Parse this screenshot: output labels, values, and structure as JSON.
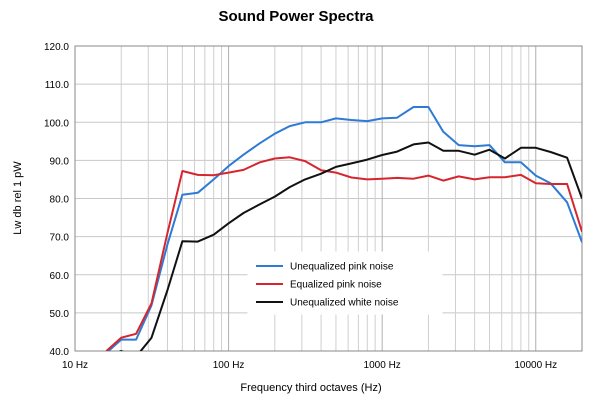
{
  "chart_data": {
    "type": "line",
    "title": "Sound Power Spectra",
    "xlabel": "Frequency  third octaves (Hz)",
    "ylabel": "Lw db rel 1 pW",
    "x_scale": "log",
    "xlim": [
      10,
      20000
    ],
    "ylim": [
      40,
      120
    ],
    "x_ticks": [
      {
        "value": 10,
        "label": "10 Hz"
      },
      {
        "value": 100,
        "label": "100 Hz"
      },
      {
        "value": 1000,
        "label": "1000 Hz"
      },
      {
        "value": 10000,
        "label": "10000 Hz"
      }
    ],
    "y_ticks": [
      {
        "value": 40,
        "label": "40.0"
      },
      {
        "value": 50,
        "label": "50.0"
      },
      {
        "value": 60,
        "label": "60.0"
      },
      {
        "value": 70,
        "label": "70.0"
      },
      {
        "value": 80,
        "label": "80.0"
      },
      {
        "value": 90,
        "label": "90.0"
      },
      {
        "value": 100,
        "label": "100.0"
      },
      {
        "value": 110,
        "label": "110.0"
      },
      {
        "value": 120,
        "label": "120.0"
      }
    ],
    "grid": true,
    "legend_position": "lower-center",
    "series": [
      {
        "name": "Unequalized pink noise",
        "color": "#2e7bd6",
        "x": [
          16,
          20,
          25,
          31.5,
          40,
          50,
          63,
          80,
          100,
          125,
          160,
          200,
          250,
          315,
          400,
          500,
          630,
          800,
          1000,
          1250,
          1600,
          2000,
          2500,
          3150,
          4000,
          5000,
          6300,
          8000,
          10000,
          12500,
          16000,
          20000
        ],
        "y": [
          39.5,
          43,
          43,
          52,
          68,
          81,
          81.5,
          85,
          88.5,
          91.5,
          94.5,
          97,
          99,
          100,
          100,
          101,
          100.6,
          100.3,
          101,
          101.2,
          104,
          104,
          97.5,
          94,
          93.7,
          94,
          89.5,
          89.5,
          86,
          84,
          79,
          68.5
        ]
      },
      {
        "name": "Equalized pink noise",
        "color": "#d6262d",
        "x": [
          16,
          20,
          25,
          31.5,
          40,
          50,
          63,
          80,
          100,
          125,
          160,
          200,
          250,
          315,
          400,
          500,
          630,
          800,
          1000,
          1250,
          1600,
          2000,
          2500,
          3150,
          4000,
          5000,
          6300,
          8000,
          10000,
          12500,
          16000,
          20000
        ],
        "y": [
          40,
          43.5,
          44.5,
          52.5,
          71,
          87.2,
          86.2,
          86.1,
          86.8,
          87.5,
          89.5,
          90.5,
          90.8,
          89.8,
          87.4,
          86.8,
          85.5,
          85,
          85.2,
          85.4,
          85.2,
          86,
          84.7,
          85.8,
          85,
          85.6,
          85.6,
          86.2,
          84,
          83.8,
          83.8,
          71.3
        ]
      },
      {
        "name": "Unequalized white noise",
        "color": "#111111",
        "x": [
          16,
          20,
          25,
          31.5,
          40,
          50,
          63,
          80,
          100,
          125,
          160,
          200,
          250,
          315,
          400,
          500,
          630,
          800,
          1000,
          1250,
          1600,
          2000,
          2500,
          3150,
          4000,
          5000,
          6300,
          8000,
          10000,
          12500,
          16000,
          20000
        ],
        "y": [
          38.5,
          40,
          38.5,
          43.5,
          56,
          68.8,
          68.7,
          70.5,
          73.5,
          76.2,
          78.5,
          80.5,
          83,
          85,
          86.5,
          88.3,
          89.2,
          90.2,
          91.4,
          92.3,
          94.2,
          94.7,
          92.5,
          92.5,
          91.5,
          92.8,
          90.5,
          93.3,
          93.3,
          92.2,
          90.7,
          80
        ]
      }
    ]
  }
}
